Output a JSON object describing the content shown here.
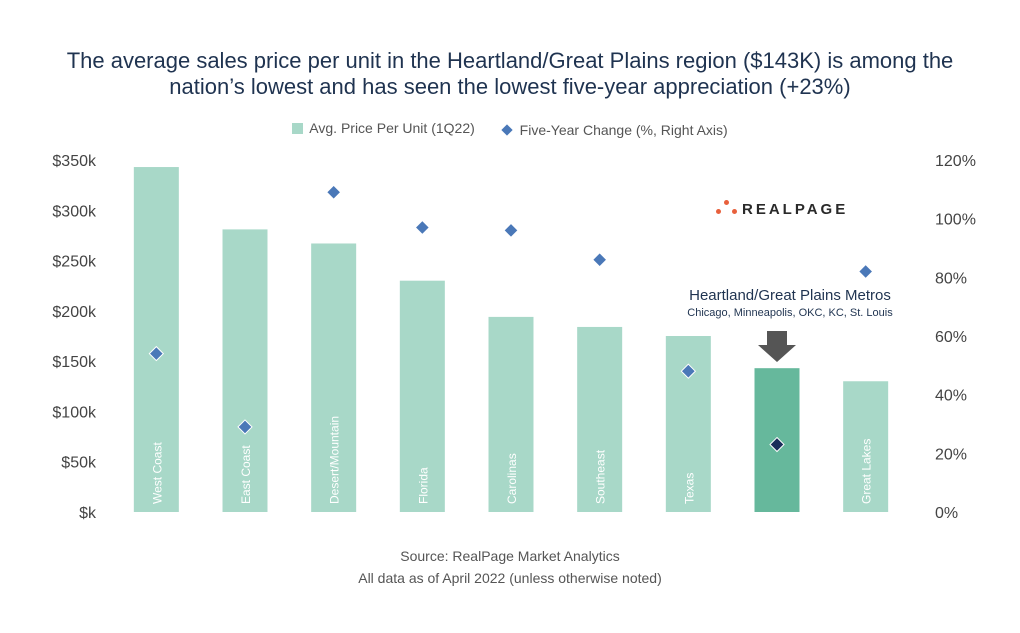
{
  "title_lines": [
    "The average sales price per unit in the Heartland/Great Plains region ($143K) is among the",
    "nation’s lowest and has seen the lowest five-year appreciation (+23%)"
  ],
  "legend": {
    "bar_label": "Avg. Price Per Unit (1Q22)",
    "marker_label": "Five-Year Change (%, Right Axis)"
  },
  "logo_text": "REALPAGE",
  "annotation": {
    "main": "Heartland/Great Plains Metros",
    "sub": "Chicago, Minneapolis, OKC, KC, St. Louis"
  },
  "footer": {
    "source": "Source: RealPage Market Analytics",
    "note": "All data as of April 2022 (unless otherwise noted)"
  },
  "colors": {
    "bar": "#a8d8c8",
    "bar_highlight": "#66b89c",
    "marker": "#4a78b8",
    "marker_highlight": "#1a2d5a",
    "arrow": "#555555",
    "title": "#1f3350"
  },
  "chart_data": {
    "type": "bar",
    "categories": [
      "West Coast",
      "East Coast",
      "Desert/Mountain",
      "Florida",
      "Carolinas",
      "Southeast",
      "Texas",
      "Heartland/Great Plains",
      "Great Lakes"
    ],
    "category_labels_shown": [
      "West Coast",
      "East Coast",
      "Desert/Mountain",
      "Florida",
      "Carolinas",
      "Southeast",
      "Texas",
      "",
      "Great Lakes"
    ],
    "highlight_index": 7,
    "series": [
      {
        "name": "Avg. Price Per Unit (1Q22)",
        "type": "bar",
        "axis": "left",
        "values": [
          343,
          281,
          267,
          230,
          194,
          184,
          175,
          143,
          130
        ]
      },
      {
        "name": "Five-Year Change (%, Right Axis)",
        "type": "scatter",
        "axis": "right",
        "values": [
          54,
          29,
          109,
          97,
          96,
          86,
          48,
          23,
          82
        ]
      }
    ],
    "left_axis": {
      "min": 0,
      "max": 350,
      "ticks": [
        0,
        50,
        100,
        150,
        200,
        250,
        300,
        350
      ],
      "tick_labels": [
        "$k",
        "$50k",
        "$100k",
        "$150k",
        "$200k",
        "$250k",
        "$300k",
        "$350k"
      ]
    },
    "right_axis": {
      "min": 0,
      "max": 120,
      "ticks": [
        0,
        20,
        40,
        60,
        80,
        100,
        120
      ],
      "tick_labels": [
        "0%",
        "20%",
        "40%",
        "60%",
        "80%",
        "100%",
        "120%"
      ]
    },
    "grid": false,
    "legend_position": "top"
  }
}
